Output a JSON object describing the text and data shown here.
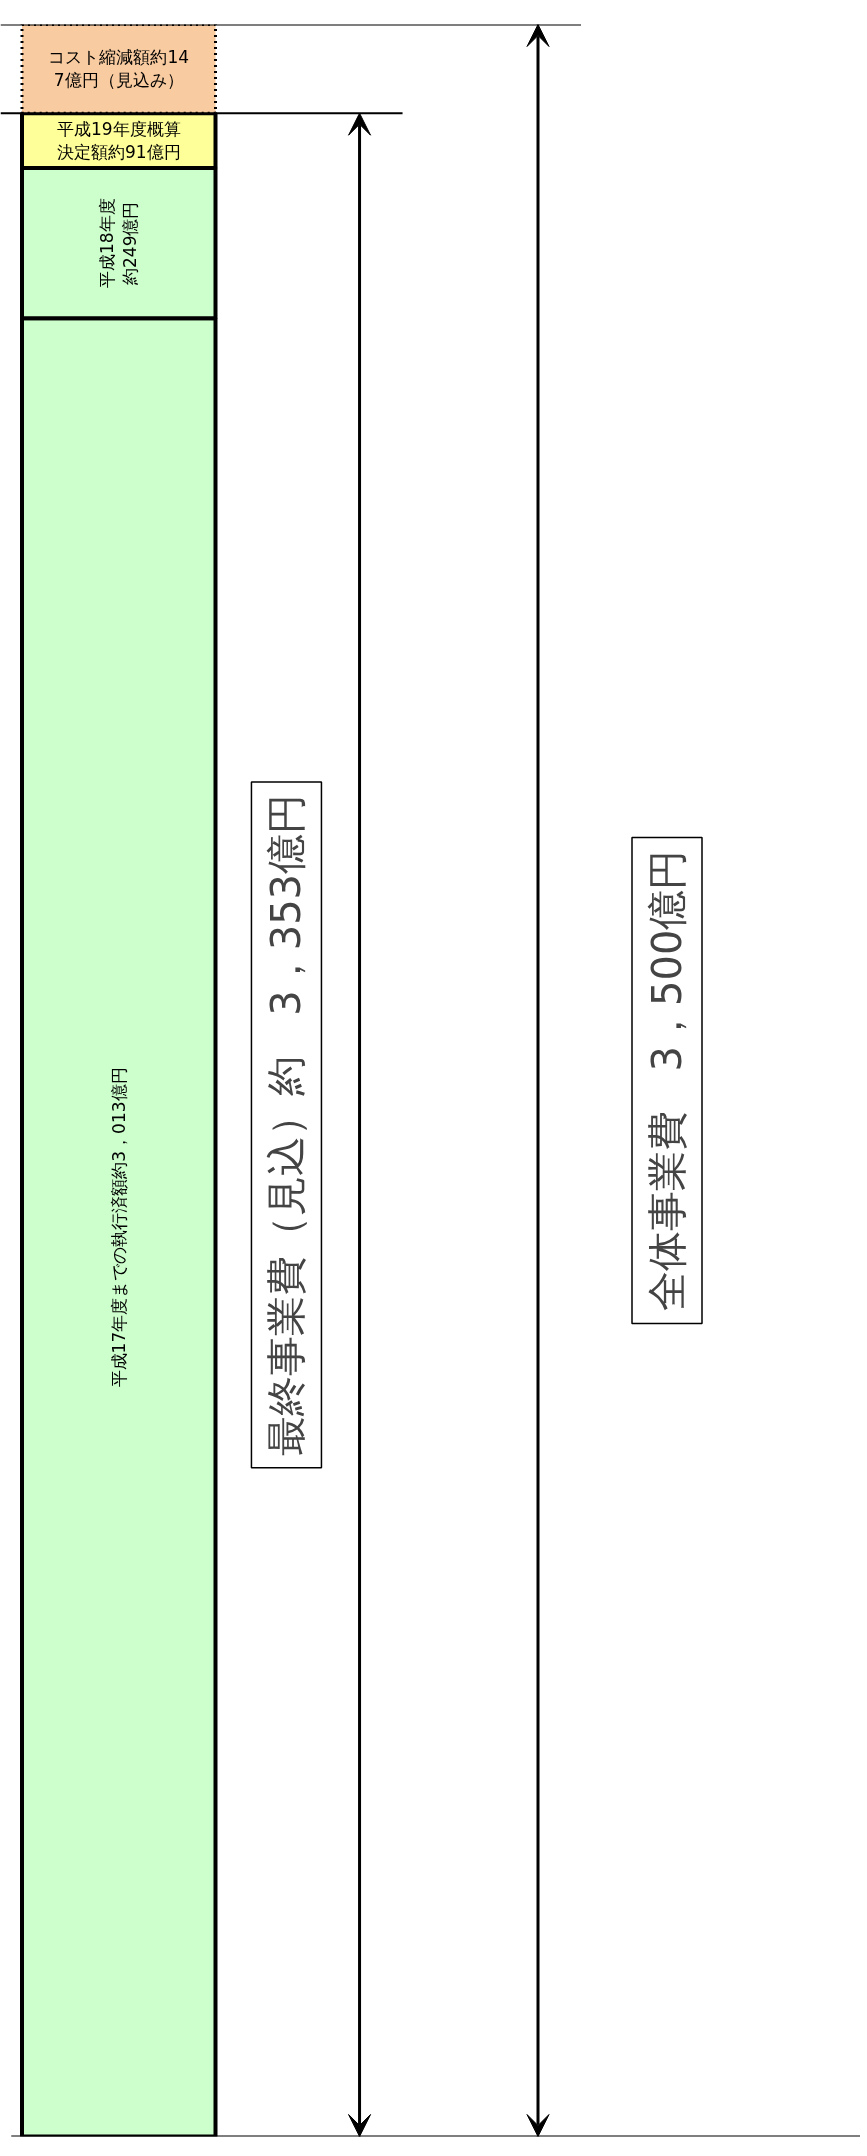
{
  "chart_data": {
    "type": "bar",
    "stacked": true,
    "categories": [
      null
    ],
    "ylim": [
      0,
      3500
    ],
    "tick_labels": false,
    "series": [
      {
        "color": "#ccffcc",
        "values": [
          3013
        ],
        "value_labels": [
          "平成17年度までの執行済額約3，013億円"
        ]
      },
      {
        "color": "#ccffcc",
        "values": [
          249
        ],
        "value_labels": [
          "平成18年度約249億円"
        ]
      },
      {
        "color": "#ffff99",
        "values": [
          91
        ],
        "value_labels": [
          "平成19年度概算決定額約91億円"
        ]
      },
      {
        "color": "#f8cba0",
        "values": [
          147
        ],
        "value_labels": [
          "コスト縮減額約147億円（見込み）"
        ],
        "line_style": "dotted"
      }
    ],
    "ref_lines": [
      {
        "axis": "y",
        "value": 3353
      },
      {
        "axis": "y",
        "value": 3500
      }
    ],
    "annotations": [
      "最終事業費（見込）約　3，353億円",
      "全体事業費　3，500億円"
    ]
  }
}
